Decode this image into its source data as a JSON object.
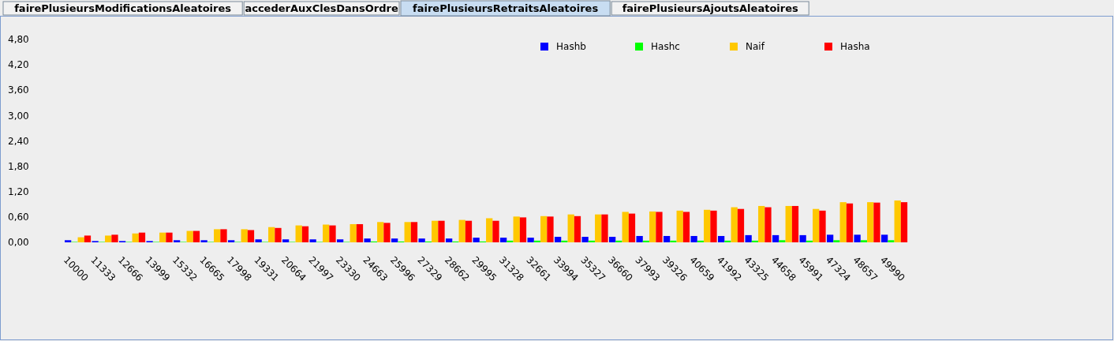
{
  "chart_data": {
    "type": "bar",
    "annotations": [
      "fairePlusieursModificationsAleatoires",
      "accederAuxClesDansOrdre",
      "fairePlusieursRetraitsAleatoires",
      "fairePlusieursAjoutsAleatoires"
    ],
    "categories": [
      "10000",
      "11333",
      "12666",
      "13999",
      "15332",
      "16665",
      "17998",
      "19331",
      "20664",
      "21997",
      "23330",
      "24663",
      "25996",
      "27329",
      "28662",
      "29995",
      "31328",
      "32661",
      "33994",
      "35327",
      "36660",
      "37993",
      "39326",
      "40659",
      "41992",
      "43325",
      "44658",
      "45991",
      "47324",
      "48657",
      "49990"
    ],
    "series": [
      {
        "name": "Hashb",
        "color": "#0000ff",
        "values": [
          0.05,
          0.03,
          0.03,
          0.03,
          0.05,
          0.05,
          0.05,
          0.07,
          0.07,
          0.07,
          0.07,
          0.09,
          0.09,
          0.09,
          0.09,
          0.11,
          0.11,
          0.11,
          0.13,
          0.13,
          0.13,
          0.15,
          0.15,
          0.15,
          0.15,
          0.17,
          0.17,
          0.17,
          0.18,
          0.18,
          0.18
        ]
      },
      {
        "name": "Hashc",
        "color": "#00ff00",
        "values": [
          0.01,
          0.01,
          0.01,
          0.01,
          0.01,
          0.01,
          0.01,
          0.01,
          0.01,
          0.01,
          0.01,
          0.02,
          0.02,
          0.02,
          0.02,
          0.02,
          0.04,
          0.04,
          0.04,
          0.04,
          0.04,
          0.04,
          0.04,
          0.04,
          0.04,
          0.04,
          0.05,
          0.04,
          0.05,
          0.05,
          0.05
        ]
      },
      {
        "name": "Naif",
        "color": "#ffc800",
        "values": [
          0.12,
          0.16,
          0.21,
          0.23,
          0.27,
          0.31,
          0.31,
          0.36,
          0.4,
          0.42,
          0.43,
          0.48,
          0.48,
          0.51,
          0.53,
          0.57,
          0.61,
          0.62,
          0.66,
          0.66,
          0.72,
          0.73,
          0.75,
          0.77,
          0.83,
          0.86,
          0.86,
          0.79,
          0.95,
          0.95,
          0.99
        ]
      },
      {
        "name": "Hasha",
        "color": "#ff0000",
        "values": [
          0.16,
          0.18,
          0.23,
          0.23,
          0.27,
          0.31,
          0.29,
          0.34,
          0.38,
          0.4,
          0.43,
          0.46,
          0.48,
          0.51,
          0.51,
          0.51,
          0.59,
          0.61,
          0.62,
          0.66,
          0.68,
          0.72,
          0.72,
          0.75,
          0.79,
          0.83,
          0.86,
          0.75,
          0.92,
          0.94,
          0.95
        ]
      }
    ],
    "ylim": [
      0,
      4.8
    ],
    "yticks": [
      {
        "value": 0,
        "label": "0,00"
      },
      {
        "value": 0.6,
        "label": "0,60"
      },
      {
        "value": 1.2,
        "label": "1,20"
      },
      {
        "value": 1.8,
        "label": "1,80"
      },
      {
        "value": 2.4,
        "label": "2,40"
      },
      {
        "value": 3.0,
        "label": "3,00"
      },
      {
        "value": 3.6,
        "label": "3,60"
      },
      {
        "value": 4.2,
        "label": "4,20"
      },
      {
        "value": 4.8,
        "label": "4,80"
      }
    ],
    "grid": false,
    "legend": "top"
  }
}
